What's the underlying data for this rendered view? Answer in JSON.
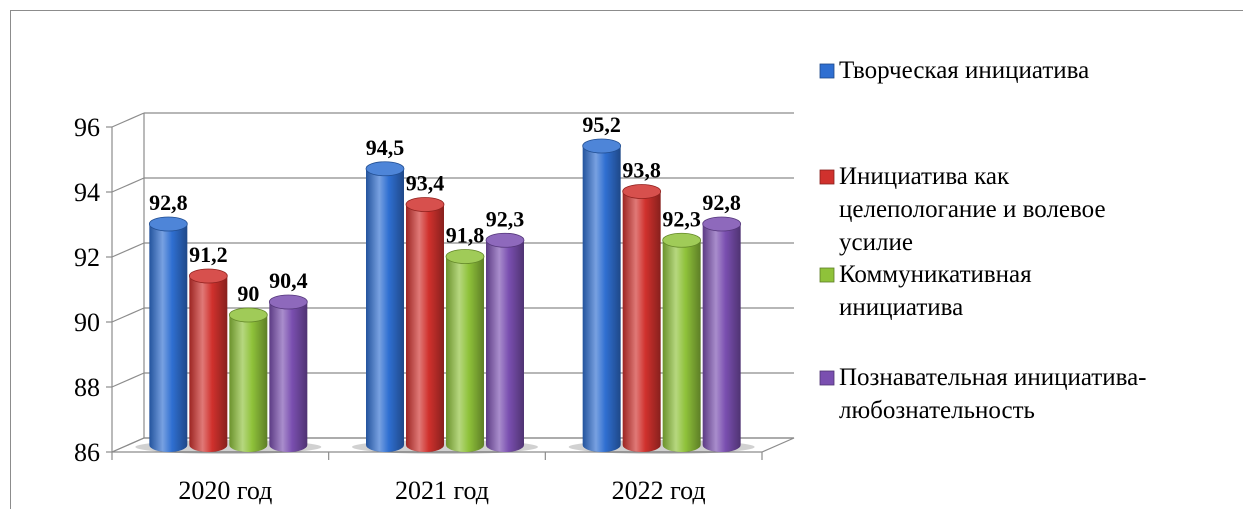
{
  "chart_data": {
    "type": "bar",
    "categories": [
      "2020 год",
      "2021 год",
      "2022 год"
    ],
    "series": [
      {
        "name": "Творческая инициатива",
        "values": [
          92.8,
          94.5,
          95.2
        ],
        "labels": [
          "92,8",
          "94,5",
          "95,2"
        ],
        "color": "#2f6fd1"
      },
      {
        "name": "Инициатива как целепологание и волевое усилие",
        "values": [
          91.2,
          93.4,
          93.8
        ],
        "labels": [
          "91,2",
          "93,4",
          "93,8"
        ],
        "color": "#d0312d"
      },
      {
        "name": "Коммуникативная инициатива",
        "values": [
          90,
          91.8,
          92.3
        ],
        "labels": [
          "90",
          "91,8",
          "92,3"
        ],
        "color": "#8fc23a"
      },
      {
        "name": "Познавательная инициатива-любознательность",
        "values": [
          90.4,
          92.3,
          92.8
        ],
        "labels": [
          "90,4",
          "92,3",
          "92,8"
        ],
        "color": "#7a4fb0"
      }
    ],
    "legend_lines": [
      [
        "Творческая инициатива"
      ],
      [
        "Инициатива как",
        "целепологание и волевое",
        "усилие"
      ],
      [
        "Коммуникативная",
        "инициатива"
      ],
      [
        "Познавательная инициатива-",
        "любознательность"
      ]
    ],
    "yticks": [
      "86",
      "88",
      "90",
      "92",
      "94",
      "96"
    ],
    "ylim": [
      86,
      96
    ],
    "grid": true,
    "legend_position": "right",
    "title": "",
    "xlabel": "",
    "ylabel": ""
  }
}
